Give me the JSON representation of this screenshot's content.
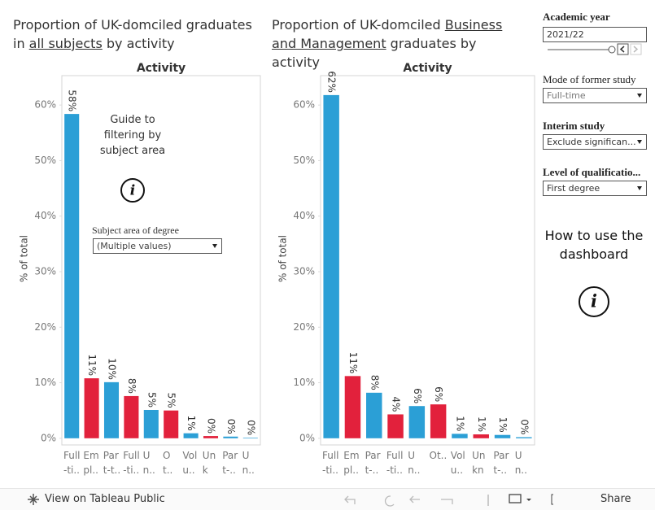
{
  "chart_data": [
    {
      "type": "bar",
      "title": [
        "Proportion of UK-domciled graduates in ",
        "all subjects",
        " by activity"
      ],
      "header": "Activity",
      "y_label": "% of total",
      "categories": [
        "Full-ti..",
        "Empl..",
        "Part-t..",
        "Full-ti..",
        "Un..",
        "Ot..",
        "Volu..",
        "Unkn..",
        "Part-..",
        "Un.."
      ],
      "values": [
        58.4,
        10.8,
        10.1,
        7.6,
        5.1,
        5.0,
        0.9,
        0.4,
        0.3,
        0.1
      ],
      "value_labels": [
        "58%",
        "11%",
        "10%",
        "8%",
        "5%",
        "5%",
        "1%",
        "0%",
        "0%",
        "0%"
      ],
      "colors": [
        "#2b9fd6",
        "#e2213c",
        "#2b9fd6",
        "#e2213c",
        "#2b9fd6",
        "#e2213c",
        "#2b9fd6",
        "#e2213c",
        "#2b9fd6",
        "#2b9fd6"
      ],
      "ylim": [
        -1.2,
        65.3
      ],
      "yticks": [
        {
          "value": 0,
          "label": "0%"
        },
        {
          "value": 10,
          "label": "10%"
        },
        {
          "value": 20,
          "label": "20%"
        },
        {
          "value": 30,
          "label": "30%"
        },
        {
          "value": 40,
          "label": "40%"
        },
        {
          "value": 50,
          "label": "50%"
        },
        {
          "value": 60,
          "label": "60%"
        }
      ],
      "annotation": "Guide to filtering by subject area",
      "filter": {
        "label": "Subject area of degree",
        "value": "(Multiple values)"
      }
    },
    {
      "type": "bar",
      "title": [
        "Proportion of UK-domciled ",
        "Business and Management",
        " graduates by activity"
      ],
      "header": "Activity",
      "y_label": "% of total",
      "categories": [
        "Full-ti..",
        "Empl..",
        "Part-..",
        "Full-ti..",
        "Un..",
        "Ot..",
        "Volu..",
        "Unkno..",
        "Part-..",
        "Un.."
      ],
      "values": [
        61.8,
        11.2,
        8.2,
        4.3,
        5.8,
        6.1,
        0.8,
        0.7,
        0.6,
        0.2
      ],
      "value_labels": [
        "62%",
        "11%",
        "8%",
        "4%",
        "6%",
        "6%",
        "1%",
        "1%",
        "1%",
        "0%"
      ],
      "colors": [
        "#2b9fd6",
        "#e2213c",
        "#2b9fd6",
        "#e2213c",
        "#2b9fd6",
        "#e2213c",
        "#2b9fd6",
        "#e2213c",
        "#2b9fd6",
        "#2b9fd6"
      ],
      "ylim": [
        -1.2,
        65.3
      ],
      "yticks": [
        {
          "value": 0,
          "label": "0%"
        },
        {
          "value": 10,
          "label": "10%"
        },
        {
          "value": 20,
          "label": "20%"
        },
        {
          "value": 30,
          "label": "30%"
        },
        {
          "value": 40,
          "label": "40%"
        },
        {
          "value": 50,
          "label": "50%"
        },
        {
          "value": 60,
          "label": "60%"
        }
      ]
    }
  ],
  "filters": [
    {
      "label": "Academic year",
      "value": "2021/22"
    },
    {
      "label": "Mode of former study",
      "value": "Full-time"
    },
    {
      "label": "Interim study",
      "value": "Exclude significan..."
    },
    {
      "label": "Level of qualificatio...",
      "value": "First degree"
    }
  ],
  "help": "How to use the dashboard",
  "footer": {
    "link": "View on Tableau Public",
    "share": "Share"
  }
}
